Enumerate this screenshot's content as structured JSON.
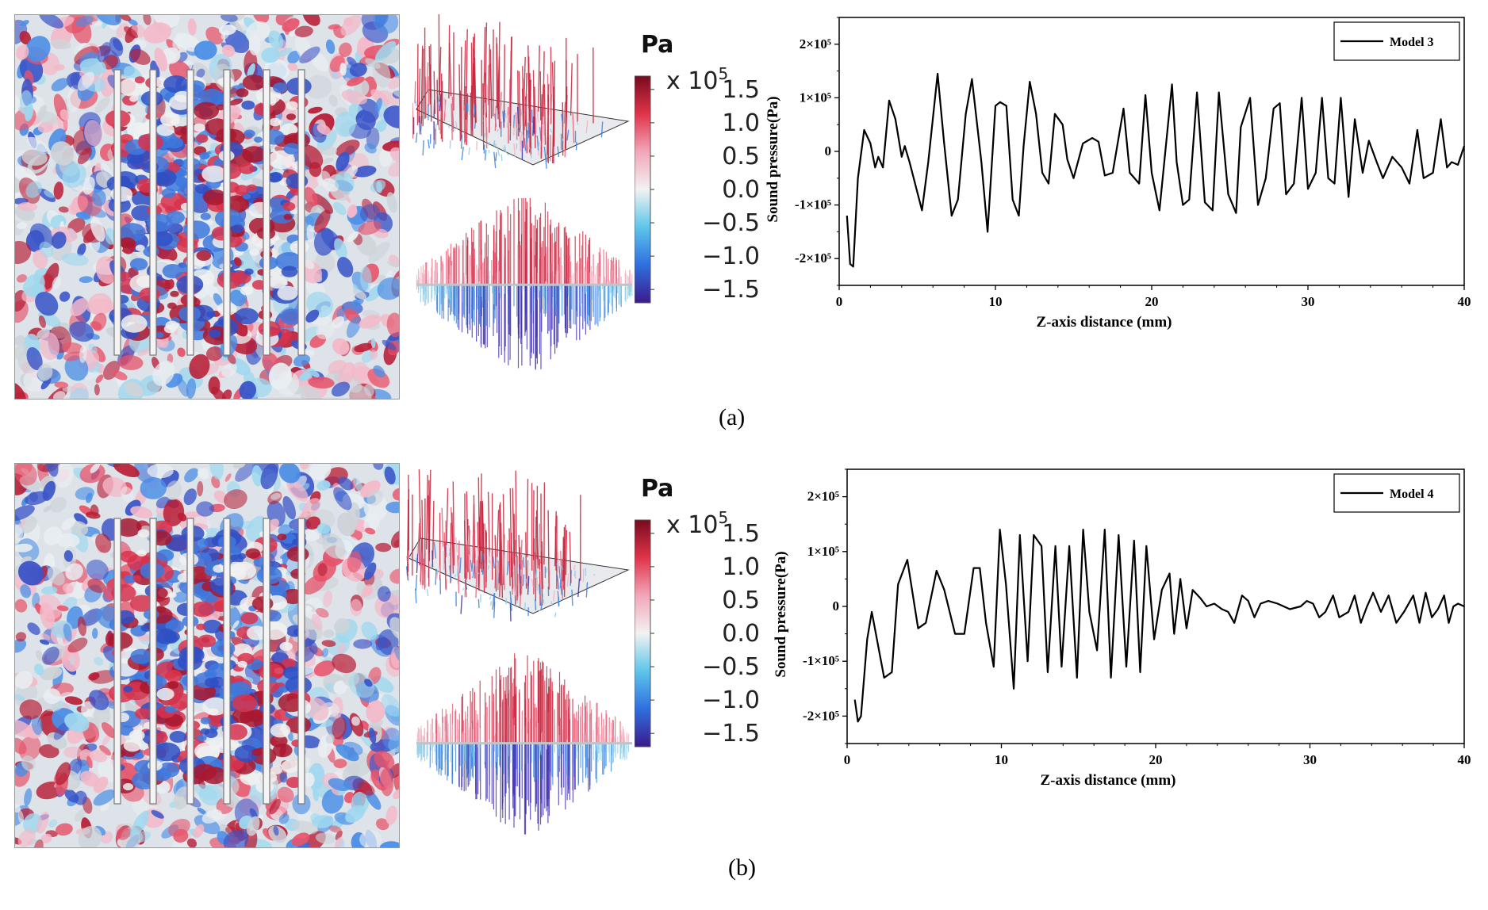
{
  "panels": [
    {
      "id": "a",
      "label": "(a)",
      "colorbar": {
        "unit": "Pa",
        "scale": "x 10",
        "scale_exp": "5",
        "ticks": [
          "1.5",
          "1.0",
          "0.5",
          "0.0",
          "−0.5",
          "−1.0",
          "−1.5"
        ],
        "tick_values": [
          1.5,
          1.0,
          0.5,
          0.0,
          -0.5,
          -1.0,
          -1.5
        ],
        "range": [
          -1.7,
          1.7
        ],
        "colors": [
          "#3b1a8c",
          "#2f6fe0",
          "#5cc6ea",
          "#f2f2f2",
          "#f2a6b8",
          "#e0344a",
          "#7a0a1e"
        ]
      },
      "field": {
        "rods": 6
      }
    },
    {
      "id": "b",
      "label": "(b)",
      "colorbar": {
        "unit": "Pa",
        "scale": "x 10",
        "scale_exp": "5",
        "ticks": [
          "1.5",
          "1.0",
          "0.5",
          "0.0",
          "−0.5",
          "−1.0",
          "−1.5"
        ],
        "tick_values": [
          1.5,
          1.0,
          0.5,
          0.0,
          -0.5,
          -1.0,
          -1.5
        ],
        "range": [
          -1.7,
          1.7
        ],
        "colors": [
          "#3b1a8c",
          "#2f6fe0",
          "#5cc6ea",
          "#f2f2f2",
          "#f2a6b8",
          "#e0344a",
          "#7a0a1e"
        ]
      },
      "field": {
        "rods": 6
      }
    }
  ],
  "chart_data": [
    {
      "type": "line",
      "panel": "a",
      "title": "",
      "xlabel": "Z-axis distance (mm)",
      "ylabel": "Sound pressure(Pa)",
      "xlim": [
        0,
        40
      ],
      "ylim": [
        -250000,
        250000
      ],
      "xticks": [
        0,
        10,
        20,
        30,
        40
      ],
      "xtick_labels": [
        "0",
        "10",
        "20",
        "30",
        "40"
      ],
      "yticks": [
        -200000,
        -100000,
        0,
        100000,
        200000
      ],
      "ytick_labels": [
        "-2×10⁵",
        "-1×10⁵",
        "0",
        "1×10⁵",
        "2×10⁵"
      ],
      "legend_position": "top-right",
      "series": [
        {
          "name": "Model 3",
          "color": "#000000",
          "x": [
            0.5,
            0.7,
            0.9,
            1.2,
            1.6,
            2.0,
            2.3,
            2.5,
            2.8,
            3.2,
            3.6,
            4.0,
            4.2,
            4.5,
            5.3,
            5.7,
            6.3,
            6.7,
            7.2,
            7.6,
            8.1,
            8.5,
            9.1,
            9.5,
            10.0,
            10.3,
            10.7,
            11.1,
            11.5,
            11.8,
            12.2,
            12.6,
            13.0,
            13.4,
            13.8,
            14.3,
            14.6,
            15.0,
            15.6,
            16.2,
            16.6,
            17.0,
            17.5,
            18.2,
            18.6,
            19.2,
            19.6,
            20.0,
            20.5,
            21.3,
            21.6,
            22.0,
            22.4,
            22.9,
            23.4,
            23.9,
            24.3,
            24.9,
            25.4,
            25.7,
            26.3,
            26.8,
            27.3,
            27.8,
            28.2,
            28.6,
            29.1,
            29.6,
            30.0,
            30.5,
            30.9,
            31.3,
            31.7,
            32.1,
            32.6,
            33.0,
            33.5,
            33.9,
            34.4,
            34.8,
            35.4,
            36.0,
            36.5,
            37.0,
            37.4,
            38.0,
            38.5,
            38.9,
            39.2,
            39.6,
            40.0
          ],
          "values": [
            -120000,
            -210000,
            -215000,
            -50000,
            40000,
            15000,
            -30000,
            -10000,
            -30000,
            95000,
            60000,
            -10000,
            10000,
            -20000,
            -110000,
            -20000,
            145000,
            20000,
            -120000,
            -90000,
            70000,
            135000,
            -20000,
            -150000,
            85000,
            92000,
            85000,
            -90000,
            -120000,
            10000,
            130000,
            70000,
            -40000,
            -60000,
            70000,
            50000,
            -15000,
            -50000,
            15000,
            25000,
            18000,
            -45000,
            -40000,
            80000,
            -40000,
            -60000,
            105000,
            -40000,
            -110000,
            125000,
            -20000,
            -100000,
            -90000,
            110000,
            -95000,
            -110000,
            110000,
            -80000,
            -115000,
            45000,
            100000,
            -100000,
            -50000,
            80000,
            90000,
            -80000,
            -60000,
            100000,
            -70000,
            -40000,
            100000,
            -50000,
            -60000,
            100000,
            -85000,
            60000,
            -40000,
            20000,
            -20000,
            -50000,
            -10000,
            -30000,
            -60000,
            40000,
            -50000,
            -40000,
            60000,
            -30000,
            -20000,
            -25000,
            10000
          ]
        }
      ]
    },
    {
      "type": "line",
      "panel": "b",
      "title": "",
      "xlabel": "Z-axis distance (mm)",
      "ylabel": "Sound pressure(Pa)",
      "xlim": [
        0,
        40
      ],
      "ylim": [
        -250000,
        250000
      ],
      "xticks": [
        0,
        10,
        20,
        30,
        40
      ],
      "xtick_labels": [
        "0",
        "10",
        "20",
        "30",
        "40"
      ],
      "yticks": [
        -200000,
        -100000,
        0,
        100000,
        200000
      ],
      "ytick_labels": [
        "-2×10⁵",
        "-1×10⁵",
        "0",
        "1×10⁵",
        "2×10⁵"
      ],
      "legend_position": "top-right",
      "series": [
        {
          "name": "Model 4",
          "color": "#000000",
          "x": [
            0.5,
            0.7,
            0.9,
            1.3,
            1.6,
            2.0,
            2.4,
            2.9,
            3.3,
            3.9,
            4.6,
            5.1,
            5.8,
            6.3,
            7.0,
            7.6,
            8.2,
            8.6,
            9.0,
            9.5,
            9.9,
            10.3,
            10.8,
            11.2,
            11.7,
            12.1,
            12.6,
            13.0,
            13.5,
            13.9,
            14.4,
            14.9,
            15.3,
            15.7,
            16.2,
            16.7,
            17.1,
            17.6,
            18.1,
            18.6,
            19.0,
            19.4,
            19.9,
            20.4,
            20.9,
            21.2,
            21.6,
            22.0,
            22.4,
            22.9,
            23.3,
            23.8,
            24.3,
            24.7,
            25.1,
            25.6,
            26.0,
            26.4,
            26.8,
            27.3,
            27.9,
            28.7,
            29.4,
            29.8,
            30.2,
            30.6,
            31.0,
            31.5,
            31.9,
            32.5,
            32.9,
            33.3,
            33.7,
            34.1,
            34.6,
            35.1,
            35.6,
            36.1,
            36.7,
            37.1,
            37.5,
            37.9,
            38.3,
            38.7,
            39.0,
            39.3,
            39.6,
            40.0
          ],
          "values": [
            -170000,
            -210000,
            -200000,
            -60000,
            -10000,
            -70000,
            -130000,
            -120000,
            40000,
            85000,
            -40000,
            -30000,
            65000,
            30000,
            -50000,
            -50000,
            70000,
            70000,
            -30000,
            -110000,
            140000,
            40000,
            -150000,
            130000,
            -100000,
            130000,
            110000,
            -120000,
            110000,
            -110000,
            110000,
            -130000,
            140000,
            -10000,
            -80000,
            140000,
            -130000,
            130000,
            -110000,
            120000,
            -120000,
            110000,
            -60000,
            30000,
            60000,
            -50000,
            50000,
            -40000,
            30000,
            15000,
            0,
            5000,
            -5000,
            -10000,
            -30000,
            20000,
            10000,
            -20000,
            5000,
            10000,
            5000,
            -5000,
            0,
            10000,
            5000,
            -20000,
            -10000,
            20000,
            -20000,
            -10000,
            20000,
            -30000,
            0,
            25000,
            -10000,
            20000,
            -30000,
            -10000,
            20000,
            -30000,
            25000,
            -20000,
            -5000,
            20000,
            -30000,
            0,
            5000,
            0
          ]
        }
      ]
    }
  ]
}
